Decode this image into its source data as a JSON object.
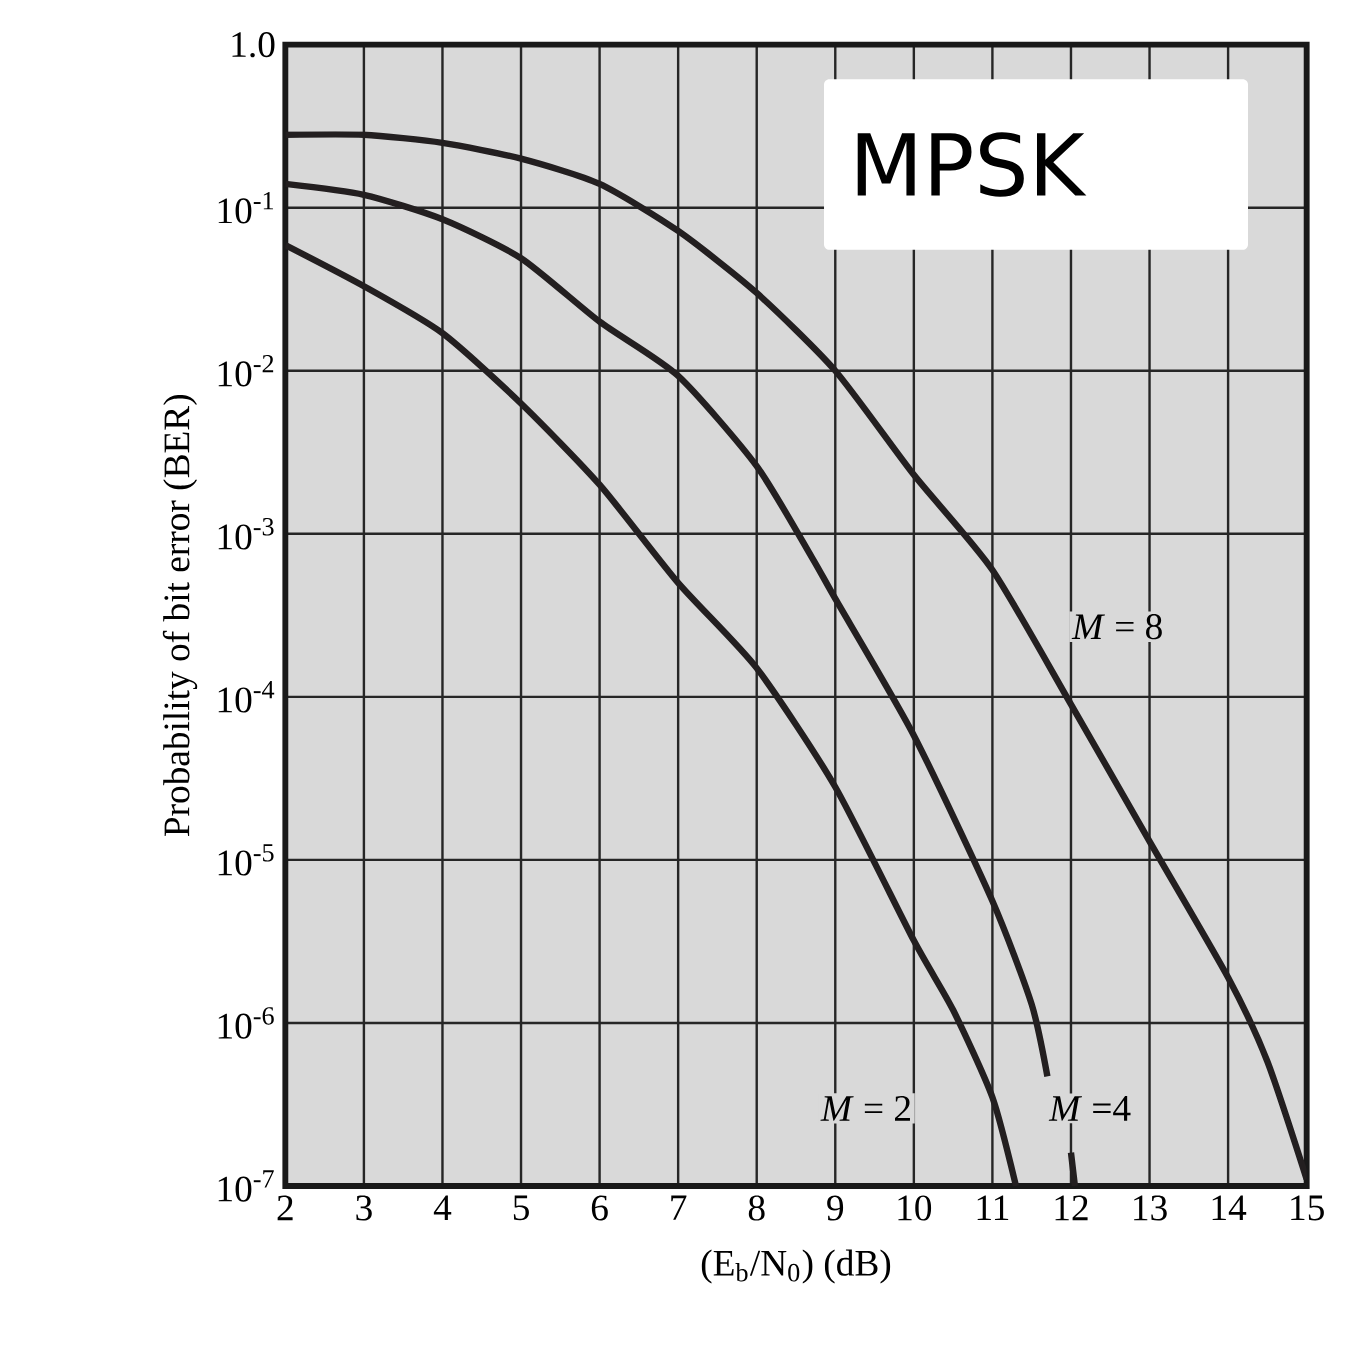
{
  "chart_data": {
    "type": "line",
    "xlabel": "(E$_{b}$/N$_{0}$) (dB)",
    "ylabel": "Probability of bit error (BER)",
    "series": [
      {
        "color": "#231f20",
        "x": [
          2,
          3,
          4,
          5,
          6,
          7,
          8,
          9,
          10,
          11,
          12,
          13,
          14,
          14.5,
          15
        ],
        "values": [
          0.28,
          0.28,
          0.25,
          0.2,
          0.14,
          0.072,
          0.03,
          0.01,
          0.0023,
          0.0006,
          9e-05,
          1.3e-05,
          1.9e-06,
          5.8e-07,
          1.1e-07
        ]
      },
      {
        "color": "#231f20",
        "x": [
          2,
          3,
          4,
          5,
          6,
          7,
          8,
          8.7,
          9,
          10,
          11,
          11.5,
          11.7,
          11.85,
          12.0,
          12.05
        ],
        "values": [
          0.14,
          0.12,
          0.085,
          0.049,
          0.02,
          0.0093,
          0.0026,
          0.00072,
          0.0004,
          5.8e-05,
          5.6e-06,
          1.3e-06,
          4.7e-07,
          null,
          1.6e-07,
          1e-07
        ]
      },
      {
        "color": "#231f20",
        "x": [
          2,
          3,
          4,
          5,
          6,
          7,
          8,
          9,
          10,
          10.5,
          11,
          11.3
        ],
        "values": [
          0.059,
          0.033,
          0.017,
          0.0063,
          0.002,
          0.0005,
          0.00015,
          2.8e-05,
          3.2e-06,
          1.2e-06,
          3.5e-07,
          1e-07
        ]
      }
    ],
    "log": "y",
    "xlim": [
      2,
      15
    ],
    "ylim": [
      1e-07,
      1.0
    ],
    "xticks": [
      2,
      3,
      4,
      5,
      6,
      7,
      8,
      9,
      10,
      11,
      12,
      13,
      14,
      15
    ],
    "yticks": [
      {
        "value": 1.0,
        "label": "1.0"
      },
      {
        "value": 0.1,
        "label": "10$^{-1}$"
      },
      {
        "value": 0.01,
        "label": "10$^{-2}$"
      },
      {
        "value": 0.001,
        "label": "10$^{-3}$"
      },
      {
        "value": 0.0001,
        "label": "10$^{-4}$"
      },
      {
        "value": 1e-05,
        "label": "10$^{-5}$"
      },
      {
        "value": 1e-06,
        "label": "10$^{-6}$"
      },
      {
        "value": 1e-07,
        "label": "10$^{-7}$"
      }
    ],
    "grid": true,
    "annotations": [
      "MPSK",
      "*M* = 8",
      "*M* = 2",
      "*M* =4"
    ]
  }
}
